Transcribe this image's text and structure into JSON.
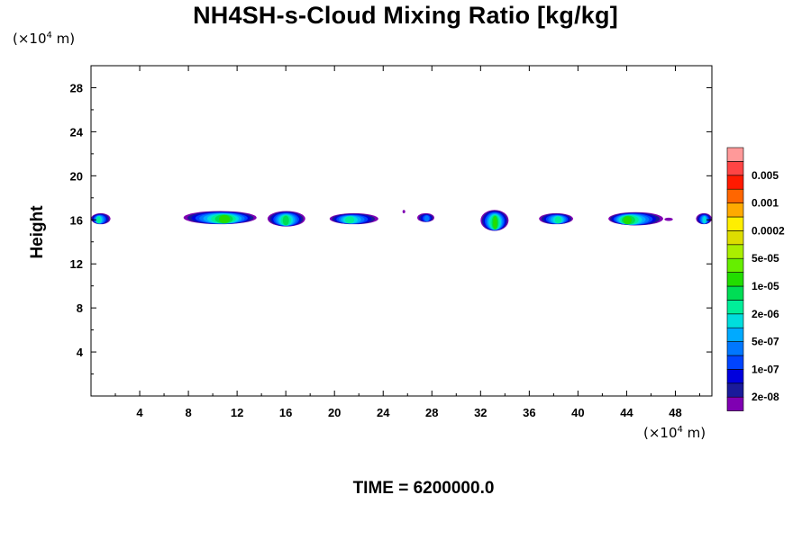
{
  "chart_data": {
    "type": "heatmap",
    "title": "NH4SH-s-Cloud Mixing Ratio [kg/kg]",
    "ylabel": "Height",
    "x_unit": {
      "prefix": "(×10",
      "exp": "4",
      "suffix": " m)"
    },
    "y_unit": {
      "prefix": "(×10",
      "exp": "4",
      "suffix": " m)"
    },
    "xlim": [
      0,
      51
    ],
    "ylim": [
      0,
      30
    ],
    "x_ticks": [
      4,
      8,
      12,
      16,
      20,
      24,
      28,
      32,
      36,
      40,
      44,
      48
    ],
    "y_ticks": [
      4,
      8,
      12,
      16,
      20,
      24,
      28
    ],
    "colorbar": {
      "colors": [
        "#7f00b2",
        "#1a1a9a",
        "#0000dd",
        "#0044ff",
        "#0077ff",
        "#00aaff",
        "#00dddd",
        "#00ee99",
        "#00dd55",
        "#22dd00",
        "#66ee00",
        "#aaee00",
        "#dddd00",
        "#ffee00",
        "#ffaa00",
        "#ff6600",
        "#ff1a00",
        "#ff4444",
        "#ff9999"
      ],
      "labels": [
        "2e-08",
        "1e-07",
        "5e-07",
        "2e-06",
        "1e-05",
        "5e-05",
        "0.0002",
        "0.001",
        "0.005"
      ]
    },
    "cloud_layer": [
      {
        "x0": 0.0,
        "x1": 1.6,
        "y_top": 16.6,
        "y_bottom": 15.6,
        "core_x": 0.6,
        "core_level": 7
      },
      {
        "x0": 7.6,
        "x1": 13.6,
        "y_top": 16.8,
        "y_bottom": 15.6,
        "core_x": 11.0,
        "core_level": 9
      },
      {
        "x0": 14.5,
        "x1": 17.6,
        "y_top": 16.8,
        "y_bottom": 15.4,
        "core_x": 16.0,
        "core_level": 8
      },
      {
        "x0": 19.6,
        "x1": 23.6,
        "y_top": 16.6,
        "y_bottom": 15.6,
        "core_x": 21.2,
        "core_level": 7
      },
      {
        "x0": 25.6,
        "x1": 25.8,
        "y_top": 16.9,
        "y_bottom": 16.6,
        "core_x": 25.7,
        "core_level": 0
      },
      {
        "x0": 26.8,
        "x1": 28.2,
        "y_top": 16.6,
        "y_bottom": 15.8,
        "core_x": 27.6,
        "core_level": 4
      },
      {
        "x0": 32.0,
        "x1": 34.3,
        "y_top": 16.9,
        "y_bottom": 15.0,
        "core_x": 33.2,
        "core_level": 9
      },
      {
        "x0": 36.8,
        "x1": 39.6,
        "y_top": 16.6,
        "y_bottom": 15.6,
        "core_x": 38.4,
        "core_level": 7
      },
      {
        "x0": 42.5,
        "x1": 47.0,
        "y_top": 16.7,
        "y_bottom": 15.5,
        "core_x": 44.0,
        "core_level": 9
      },
      {
        "x0": 47.1,
        "x1": 47.8,
        "y_top": 16.2,
        "y_bottom": 15.9,
        "core_x": 47.4,
        "core_level": 0
      },
      {
        "x0": 49.7,
        "x1": 51.0,
        "y_top": 16.6,
        "y_bottom": 15.6,
        "core_x": 50.4,
        "core_level": 6
      }
    ],
    "time_label": "TIME = 6200000.0"
  }
}
